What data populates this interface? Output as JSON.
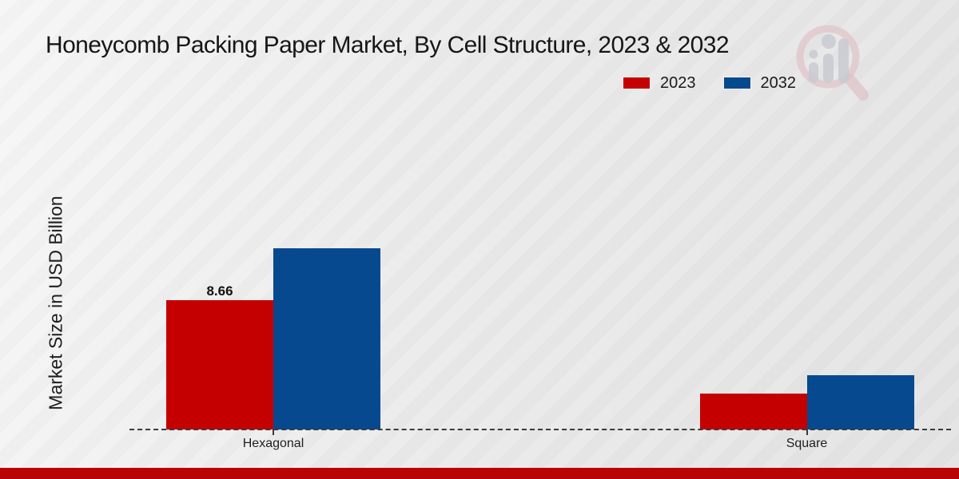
{
  "header": {
    "title": "Honeycomb Packing Paper Market, By Cell Structure, 2023 & 2032"
  },
  "legend": [
    {
      "label": "2023",
      "color": "#c50000"
    },
    {
      "label": "2032",
      "color": "#07498e"
    }
  ],
  "watermark_icon": "magnifier-with-bar-chart-logo",
  "accent_colors": {
    "series_2023_red": "#c50000",
    "series_2032_blue": "#07498e",
    "footer_strip_red": "#ba0303"
  },
  "chart_data": {
    "type": "bar",
    "title": "Honeycomb Packing Paper Market, By Cell Structure, 2023 & 2032",
    "categories": [
      "Hexagonal",
      "Square"
    ],
    "series": [
      {
        "name": "2023",
        "color": "#c50000",
        "values": [
          8.66,
          2.41
        ],
        "value_labels": [
          "8.66",
          ""
        ]
      },
      {
        "name": "2032",
        "color": "#07498e",
        "values": [
          12.13,
          3.63
        ],
        "value_labels": [
          "",
          ""
        ]
      }
    ],
    "xlabel": "",
    "ylabel": "Market Size in USD Billion",
    "ylim": [
      0,
      14
    ],
    "grid": false,
    "y_axis_ticks_visible": false,
    "baseline_style": "dashed",
    "legend_position": "top-right"
  }
}
